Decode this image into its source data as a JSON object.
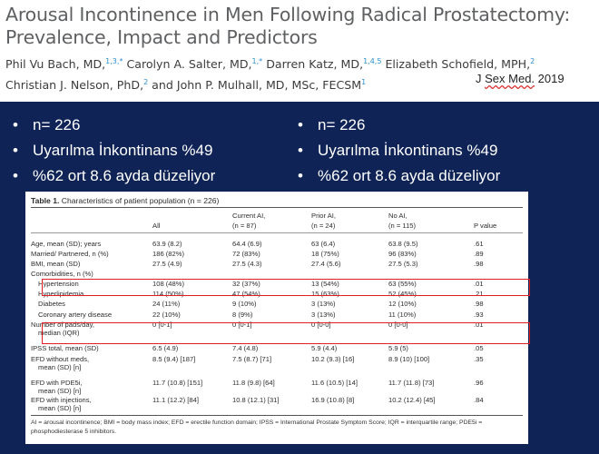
{
  "paper": {
    "title_line1": "Arousal Incontinence in Men Following Radical Prostatectomy:",
    "title_line2": "Prevalence, Impact and Predictors",
    "authors_line1": [
      {
        "name": "Phil Vu Bach, MD,",
        "sup": "1,3,*"
      },
      {
        "name": " Carolyn A. Salter, MD,",
        "sup": "1,*"
      },
      {
        "name": " Darren Katz, MD,",
        "sup": "1,4,5"
      },
      {
        "name": " Elizabeth Schofield, MPH,",
        "sup": "2"
      }
    ],
    "authors_line2": [
      {
        "name": "Christian J. Nelson, PhD,",
        "sup": "2"
      },
      {
        "name": " and John P. Mulhall, MD, MSc, FECSM",
        "sup": "1"
      }
    ],
    "journal_prefix": "J ",
    "journal_name": "Sex Med.",
    "journal_year": " 2019"
  },
  "bullets_left": [
    "n= 226",
    "Uyarılma İnkontinans %49",
    "%62 ort 8.6 ayda düzeliyor"
  ],
  "bullets_right": [
    "n= 226",
    "Uyarılma İnkontinans %49",
    "%62 ort 8.6 ayda düzeliyor"
  ],
  "bullet_glyph": "•",
  "table": {
    "caption_bold": "Table 1.",
    "caption_rest": " Characteristics of patient population (n = 226)",
    "header_top": [
      "",
      "",
      "Current AI,",
      "Prior AI,",
      "No AI,",
      ""
    ],
    "header_bottom": [
      "",
      "All",
      "(n = 87)",
      "(n = 24)",
      "(n = 115)",
      "P value"
    ],
    "rows": [
      {
        "cells": [
          "Age, mean (SD); years",
          "63.9 (8.2)",
          "64.4 (6.9)",
          "63 (6.4)",
          "63.8 (9.5)",
          ".61"
        ]
      },
      {
        "cells": [
          "Married/ Partnered, n (%)",
          "186 (82%)",
          "72 (83%)",
          "18 (75%)",
          "96 (83%)",
          ".89"
        ]
      },
      {
        "cells": [
          "BMI, mean (SD)",
          "27.5 (4.9)",
          "27.5 (4.3)",
          "27.4 (5.6)",
          "27.5 (5.3)",
          ".98"
        ]
      },
      {
        "cells": [
          "Comorbidities, n (%)",
          "",
          "",
          "",
          "",
          ""
        ]
      },
      {
        "cells": [
          "Hypertension",
          "108 (48%)",
          "32 (37%)",
          "13 (54%)",
          "63 (55%)",
          ".01"
        ],
        "indent": true
      },
      {
        "cells": [
          "Hyperlipidemia",
          "114 (50%)",
          "47 (54%)",
          "15 (63%)",
          "52 (45%)",
          ".21"
        ],
        "indent": true
      },
      {
        "cells": [
          "Diabetes",
          "24 (11%)",
          "9 (10%)",
          "3 (13%)",
          "12 (10%)",
          ".98"
        ],
        "indent": true
      },
      {
        "cells": [
          "Coronary artery disease",
          "22 (10%)",
          "8 (9%)",
          "3 (13%)",
          "11 (10%)",
          ".93"
        ],
        "indent": true
      },
      {
        "cells": [
          "Number of pads/day,",
          "0 [0-1]",
          "0 [0-1]",
          "0 [0-0]",
          "0 [0-0]",
          ".01"
        ],
        "cont": "median (IQR)"
      },
      {
        "cells": [
          "IPSS total, mean (SD)",
          "6.5 (4.9)",
          "7.4 (4.8)",
          "5.9 (4.4)",
          "5.9 (5)",
          ".05"
        ]
      },
      {
        "cells": [
          "EFD without meds,",
          "8.5 (9.4) [187]",
          "7.5 (8.7) [71]",
          "10.2 (9.3) [16]",
          "8.9 (10) [100]",
          ".35"
        ],
        "cont": "mean (SD) [n]"
      },
      {
        "cells": [
          "EFD with PDE5i,",
          "11.7 (10.8) [151]",
          "11.8 (9.8) [64]",
          "11.6 (10.5) [14]",
          "11.7 (11.8) [73]",
          ".96"
        ],
        "cont": "mean (SD) [n]"
      },
      {
        "cells": [
          "EFD with injections,",
          "11.1 (12.2) [84]",
          "10.8 (12.1) [31]",
          "16.9 (10.8) [8]",
          "10.2 (12.4) [45]",
          ".84"
        ],
        "cont": "mean (SD) [n]"
      }
    ],
    "footnote": "AI = arousal incontinence; BMI = body mass index; EFD = erectile function domain; IPSS = International Prostate Symptom Score; IQR = interquartile range; PDE5i = phosphodiesterase 5 inhibitors."
  },
  "colors": {
    "slide_background": "#0f2356",
    "highlight_box": "#e02020",
    "title_gray": "#5f6062",
    "superscript_blue": "#2a8fd0"
  }
}
